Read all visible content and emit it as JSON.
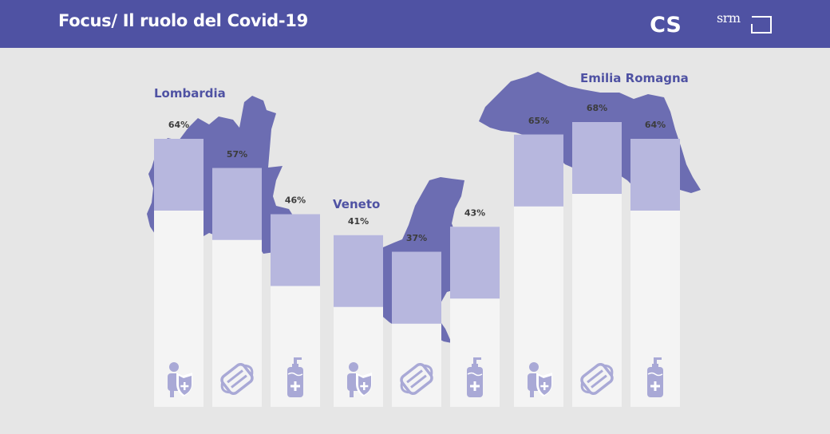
{
  "header": {
    "title": "Focus/ Il ruolo del Covid-19",
    "logo_cs_text": "CS",
    "logo_srm_text": "srm"
  },
  "colors": {
    "header_bg": "#4f52a3",
    "region_fill": "#6c6db2",
    "bar_fill": "#b3b3dc",
    "column_bg": "#f4f4f4",
    "region_label": "#4f52a3",
    "icon_color": "#a9a9d6",
    "value_text": "#3c3c3c"
  },
  "chart_data": {
    "type": "bar",
    "ylim": [
      0,
      100
    ],
    "groups": [
      {
        "name": "Lombardia",
        "values": [
          64,
          57,
          46
        ],
        "labels": [
          "64%",
          "57%",
          "46%"
        ],
        "icons": [
          "worker-shield-icon",
          "face-mask-icon",
          "hand-sanitizer-icon"
        ]
      },
      {
        "name": "Veneto",
        "values": [
          41,
          37,
          43
        ],
        "labels": [
          "41%",
          "37%",
          "43%"
        ],
        "icons": [
          "worker-shield-icon",
          "face-mask-icon",
          "hand-sanitizer-icon"
        ]
      },
      {
        "name": "Emilia Romagna",
        "values": [
          65,
          68,
          64
        ],
        "labels": [
          "65%",
          "68%",
          "64%"
        ],
        "icons": [
          "worker-shield-icon",
          "face-mask-icon",
          "hand-sanitizer-icon"
        ]
      }
    ]
  }
}
